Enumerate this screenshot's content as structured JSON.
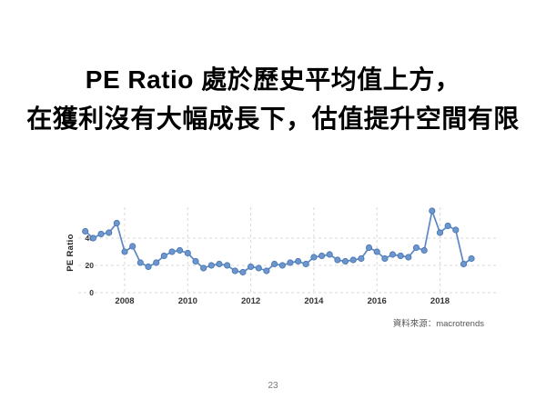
{
  "slide": {
    "title_line1": "PE Ratio 處於歷史平均值上方，",
    "title_line2": "在獲利沒有大幅成長下，估值提升空間有限",
    "source": "資料來源：macrotrends",
    "page_number": "23"
  },
  "chart_data": {
    "type": "line",
    "title": "",
    "xlabel": "",
    "ylabel": "PE Ratio",
    "x_start_year": 2006.75,
    "x_step_years": 0.25,
    "values": [
      45,
      40,
      43,
      44,
      51,
      30,
      34,
      22,
      19,
      22,
      27,
      30,
      31,
      29,
      23,
      18,
      20,
      21,
      20,
      16,
      15,
      19,
      18,
      16,
      21,
      20,
      22,
      23,
      21,
      26,
      27,
      28,
      24,
      23,
      24,
      25,
      33,
      30,
      25,
      28,
      27,
      26,
      33,
      31,
      60,
      44,
      49,
      46,
      21,
      25
    ],
    "x_ticks": [
      2008,
      2010,
      2012,
      2014,
      2016,
      2018
    ],
    "y_ticks": [
      0,
      20,
      40
    ],
    "xlim": [
      2006.5,
      2019.4
    ],
    "ylim": [
      0,
      63
    ],
    "grid": "dashed",
    "legend": "none",
    "line_color": "#5b87c3",
    "marker_fill": "#6d97cc",
    "marker_stroke": "#4d7ab8",
    "grid_color": "#d9d9d9",
    "tick_color": "#333333"
  }
}
